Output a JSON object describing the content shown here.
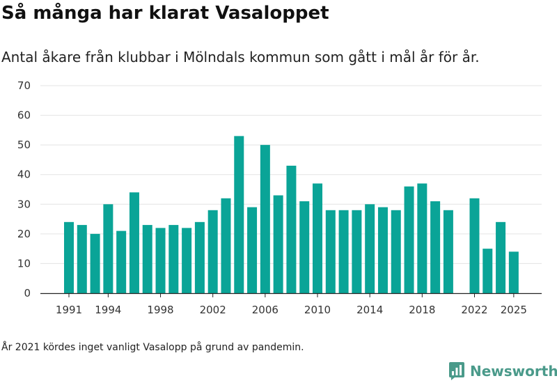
{
  "colors": {
    "bar": "#0aa497",
    "grid": "#e3e3e3",
    "brand": "#4a9a8a"
  },
  "footer": {
    "note": "År 2021 kördes inget vanligt Vasalopp på grund av pandemin.",
    "brand_name": "Newsworthy",
    "brand_icon": "newsworthy-logo-icon"
  },
  "chart_data": {
    "type": "bar",
    "title": "Så många har klarat Vasaloppet",
    "subtitle": "Antal åkare från klubbar i Mölndals kommun som gått i mål år för år.",
    "xlabel": "",
    "ylabel": "",
    "ylim": [
      0,
      70
    ],
    "yticks": [
      0,
      10,
      20,
      30,
      40,
      50,
      60,
      70
    ],
    "xticks": [
      1991,
      1994,
      1998,
      2002,
      2006,
      2010,
      2014,
      2018,
      2022,
      2025
    ],
    "grid": true,
    "categories": [
      1991,
      1992,
      1993,
      1994,
      1995,
      1996,
      1997,
      1998,
      1999,
      2000,
      2001,
      2002,
      2003,
      2004,
      2005,
      2006,
      2007,
      2008,
      2009,
      2010,
      2011,
      2012,
      2013,
      2014,
      2015,
      2016,
      2017,
      2018,
      2019,
      2020,
      2021,
      2022,
      2023,
      2024,
      2025
    ],
    "values": [
      24,
      23,
      20,
      30,
      21,
      34,
      23,
      22,
      23,
      22,
      24,
      28,
      32,
      53,
      29,
      50,
      33,
      43,
      31,
      37,
      28,
      28,
      28,
      30,
      29,
      28,
      36,
      37,
      31,
      28,
      null,
      32,
      15,
      24,
      14
    ]
  }
}
